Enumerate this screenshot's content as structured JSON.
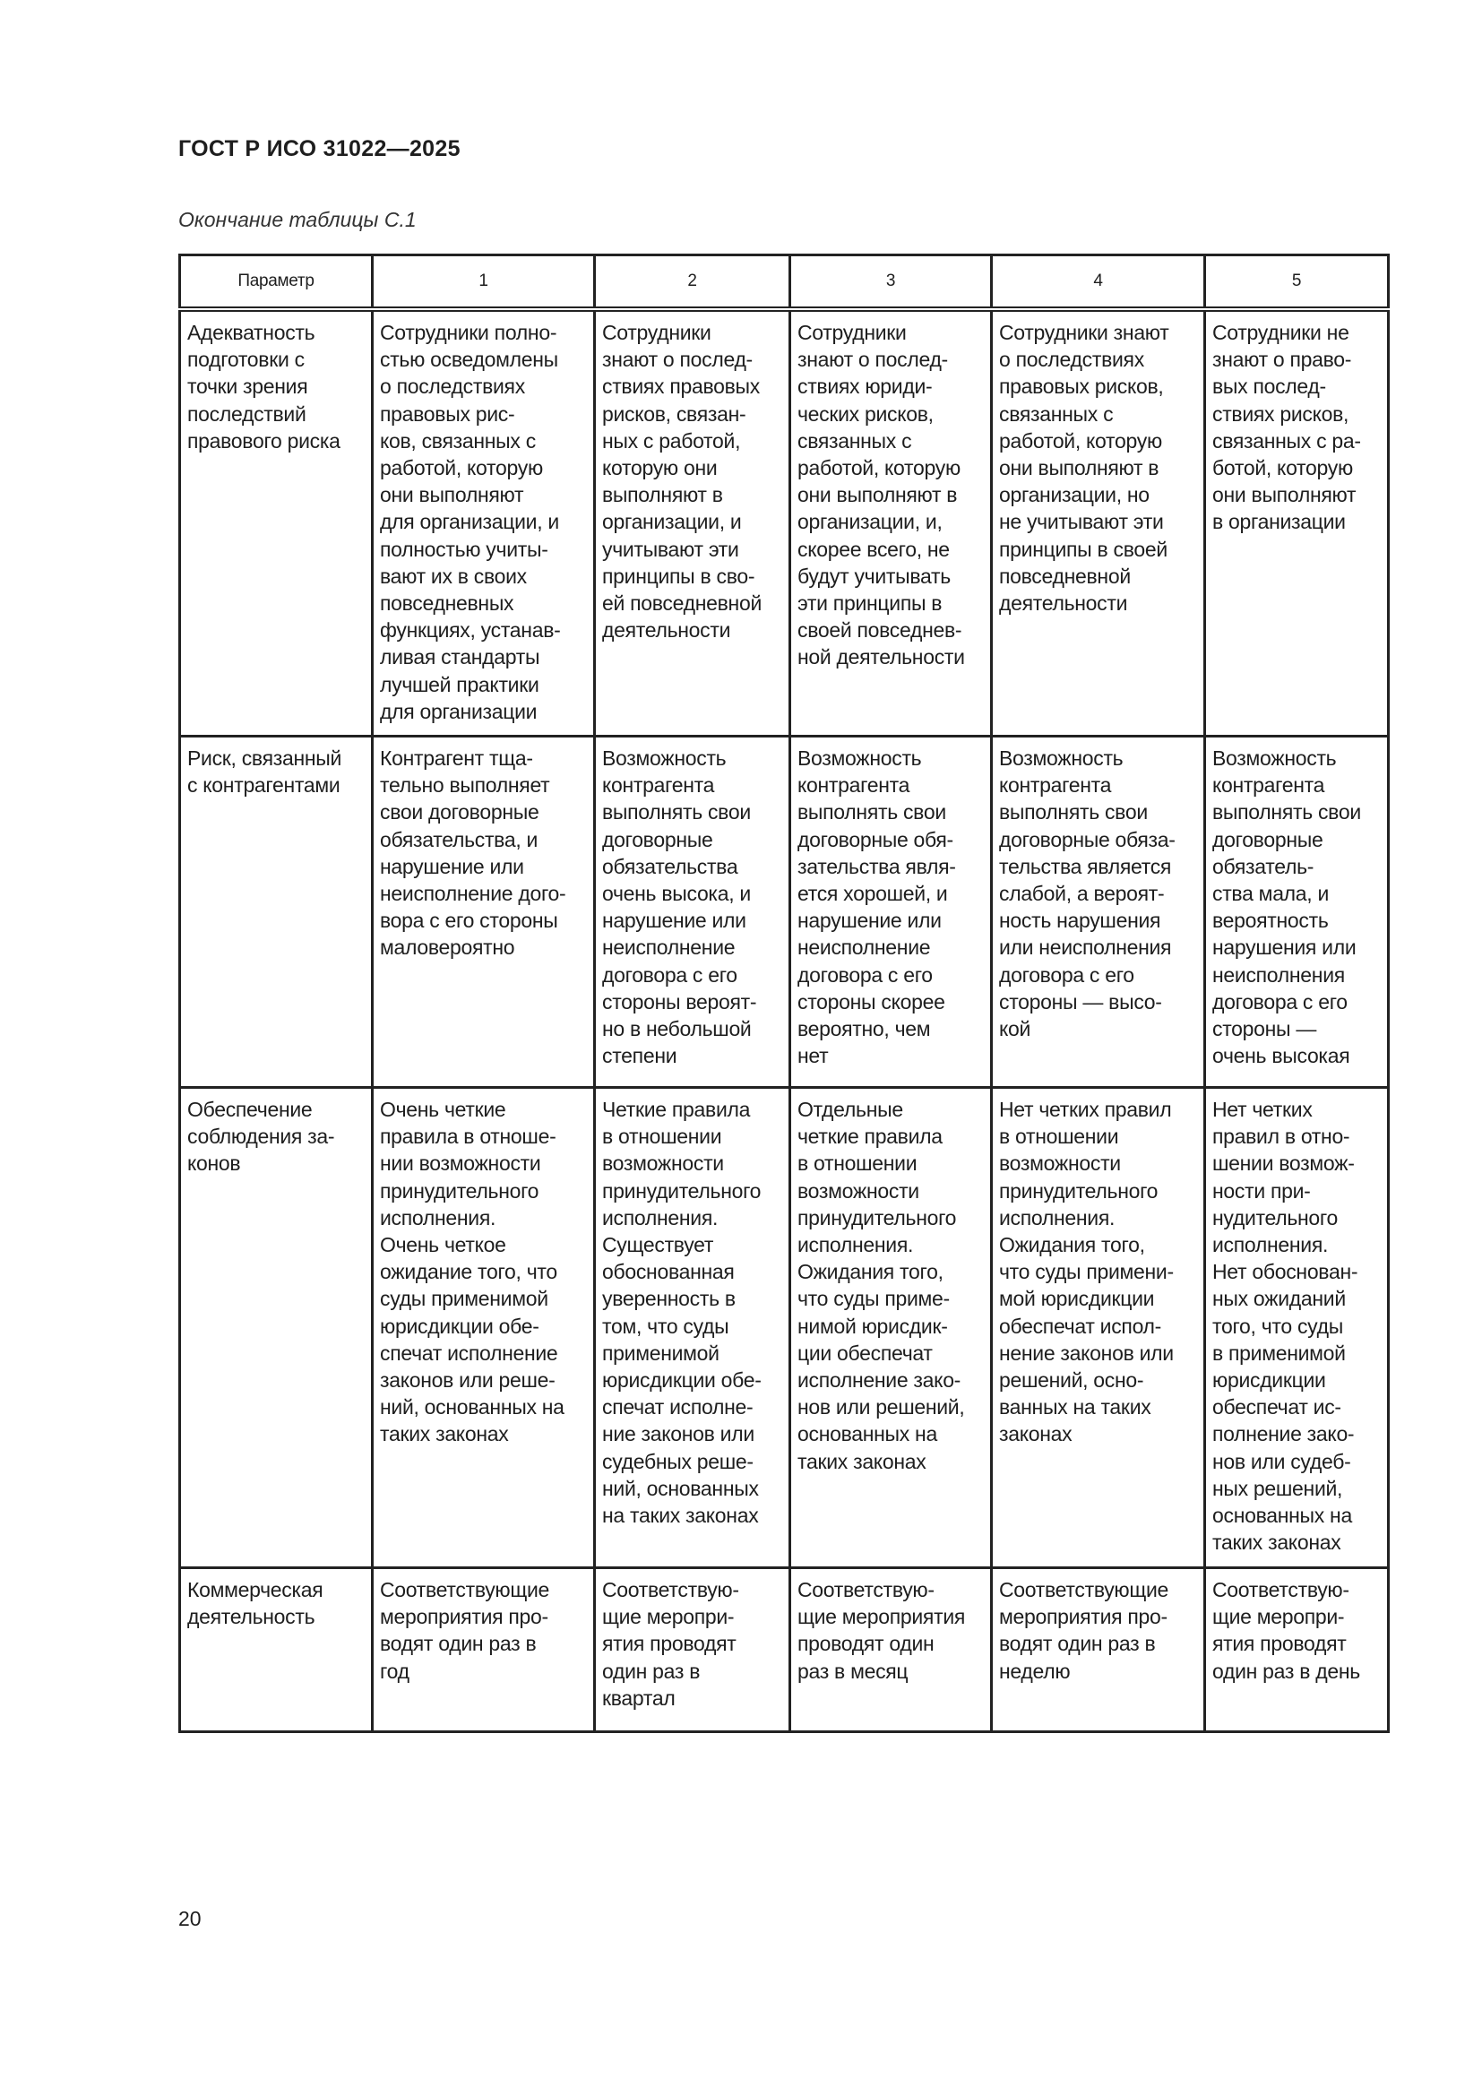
{
  "header": {
    "title": "ГОСТ Р ИСО 31022—2025"
  },
  "caption": "Окончание таблицы С.1",
  "table": {
    "columns": [
      "Параметр",
      "1",
      "2",
      "3",
      "4",
      "5"
    ],
    "rows": [
      {
        "cells": [
          "Адекватность\nподготовки с\nточки зрения\nпоследствий\nправового риска",
          "Сотрудники полно-\nстью осведомлены\nо последствиях\nправовых рис-\nков, связанных с\nработой, которую\nони выполняют\nдля организации, и\nполностью учиты-\nвают их в своих\nповседневных\nфункциях, устанав-\nливая стандарты\nлучшей практики\nдля организации",
          "Сотрудники\nзнают о послед-\nствиях правовых\nрисков, связан-\nных с работой,\nкоторую они\nвыполняют в\nорганизации, и\nучитывают эти\nпринципы в сво-\nей повседневной\nдеятельности",
          "Сотрудники\nзнают о послед-\nствиях юриди-\nческих рисков,\nсвязанных с\nработой, которую\nони выполняют в\nорганизации, и,\nскорее всего, не\nбудут учитывать\nэти принципы в\nсвоей повседнев-\nной деятельности",
          "Сотрудники знают\nо последствиях\nправовых рисков,\nсвязанных с\nработой, которую\nони выполняют в\nорганизации, но\nне учитывают эти\nпринципы в своей\nповседневной\nдеятельности",
          "Сотрудники не\nзнают о право-\nвых послед-\nствиях рисков,\nсвязанных с ра-\nботой, которую\nони выполняют\nв организации"
        ]
      },
      {
        "cells": [
          "Риск, связанный\nс контрагентами",
          "Контрагент тща-\nтельно выполняет\nсвои договорные\nобязательства, и\nнарушение или\nнеисполнение дого-\nвора с его стороны\nмаловероятно",
          "Возможность\nконтрагента\nвыполнять свои\nдоговорные\nобязательства\nочень высока, и\nнарушение или\nнеисполнение\nдоговора с его\nстороны вероят-\nно в небольшой\nстепени",
          "Возможность\nконтрагента\nвыполнять свои\nдоговорные обя-\nзательства явля-\nется хорошей, и\nнарушение или\nнеисполнение\nдоговора с его\nстороны скорее\nвероятно, чем\nнет",
          "Возможность\nконтрагента\nвыполнять свои\nдоговорные обяза-\nтельства является\nслабой, а вероят-\nность нарушения\nили неисполнения\nдоговора с его\nстороны — высо-\nкой",
          "Возможность\nконтрагента\nвыполнять свои\nдоговорные\nобязатель-\nства мала, и\nвероятность\nнарушения или\nнеисполнения\nдоговора с его\nстороны —\nочень высокая"
        ]
      },
      {
        "cells": [
          "Обеспечение\nсоблюдения за-\nконов",
          "Очень четкие\nправила в отноше-\nнии возможности\nпринудительного\nисполнения.\nОчень четкое\nожидание того, что\nсуды применимой\nюрисдикции обе-\nспечат исполнение\nзаконов или реше-\nний, основанных на\nтаких законах",
          "Четкие правила\nв отношении\nвозможности\nпринудительного\nисполнения.\nСуществует\nобоснованная\nуверенность в\nтом, что суды\nприменимой\nюрисдикции обе-\nспечат исполне-\nние законов или\nсудебных реше-\nний, основанных\nна таких законах",
          "Отдельные\nчеткие правила\nв отношении\nвозможности\nпринудительного\nисполнения.\nОжидания того,\nчто суды приме-\nнимой юрисдик-\nции обеспечат\nисполнение зако-\nнов или решений,\nоснованных на\nтаких законах",
          "Нет четких правил\nв отношении\nвозможности\nпринудительного\nисполнения.\nОжидания того,\nчто суды примени-\nмой юрисдикции\nобеспечат испол-\nнение законов или\nрешений, осно-\nванных на таких\nзаконах",
          "Нет четких\nправил в отно-\nшении возмож-\nности при-\nнудительного\nисполнения.\nНет обоснован-\nных ожиданий\nтого, что суды\nв применимой\nюрисдикции\nобеспечат ис-\nполнение зако-\nнов или судеб-\nных решений,\nоснованных на\nтаких законах"
        ]
      },
      {
        "cells": [
          "Коммерческая\nдеятельность",
          "Соответствующие\nмероприятия про-\nводят один раз в\nгод",
          "Соответствую-\nщие меропри-\nятия проводят\nодин раз в\nквартал",
          "Соответствую-\nщие мероприятия\nпроводят один\nраз в месяц",
          "Соответствующие\nмероприятия про-\nводят один раз в\nнеделю",
          "Соответствую-\nщие меропри-\nятия проводят\nодин раз в день"
        ]
      }
    ]
  },
  "footer": {
    "page_number": "20"
  }
}
